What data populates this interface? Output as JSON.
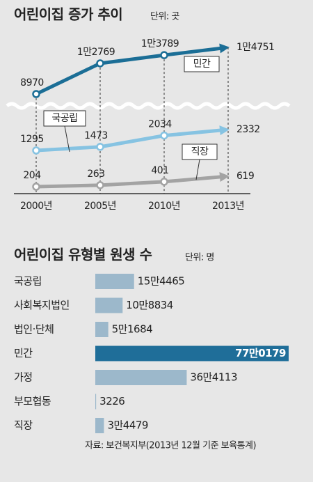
{
  "chart_data": [
    {
      "type": "line",
      "title": "어린이집 증가 추이",
      "unit": "단위: 곳",
      "categories": [
        "2000년",
        "2005년",
        "2010년",
        "2013년"
      ],
      "series": [
        {
          "name": "민간",
          "color": "#1b6e96",
          "values": [
            8970,
            12769,
            13789,
            14751
          ],
          "value_labels": [
            "8970",
            "1만2769",
            "1만3789",
            "1만4751"
          ]
        },
        {
          "name": "국공립",
          "color": "#86c3e2",
          "values": [
            1295,
            1473,
            2034,
            2332
          ]
        },
        {
          "name": "직장",
          "color": "#a3a3a3",
          "values": [
            204,
            263,
            401,
            619
          ]
        }
      ]
    },
    {
      "type": "hbar",
      "title": "어린이집 유형별 원생 수",
      "unit": "단위: 명",
      "categories": [
        "국공립",
        "사회복지법인",
        "법인·단체",
        "민간",
        "가정",
        "부모협동",
        "직장"
      ],
      "values": [
        154465,
        108834,
        51684,
        770179,
        364113,
        3226,
        34479
      ],
      "value_labels": [
        "15만4465",
        "10만8834",
        "5만1684",
        "77만0179",
        "36만4113",
        "3226",
        "3만4479"
      ],
      "colors": [
        "#9cb8cb",
        "#9cb8cb",
        "#9cb8cb",
        "#1f6e99",
        "#9cb8cb",
        "#9cb8cb",
        "#9cb8cb"
      ]
    }
  ],
  "source": "자료: 보건복지부(2013년 12월 기준 보육통계)"
}
